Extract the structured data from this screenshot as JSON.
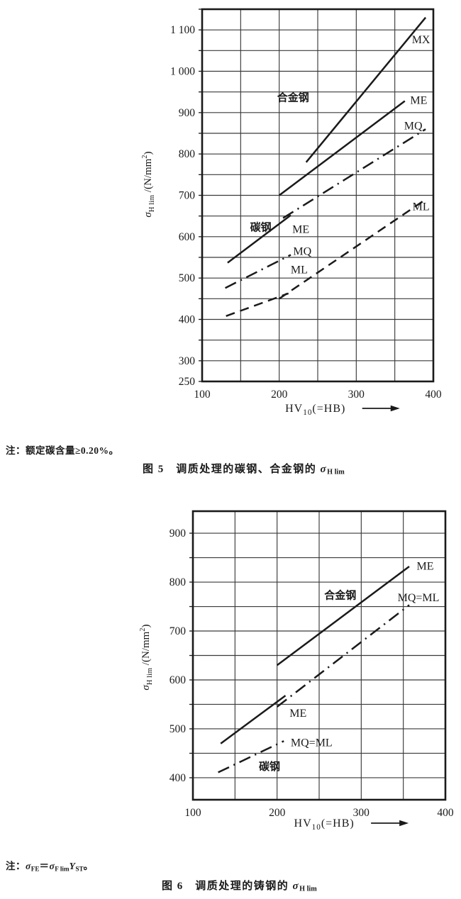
{
  "page": {
    "background": "#ffffff",
    "ink": "#1a1a1a",
    "grid_color": "#3a3a3a"
  },
  "notes": {
    "note1": [
      {
        "v": "注：额定碳含量≥0.20%。"
      }
    ],
    "note2": [
      {
        "v": "注："
      },
      {
        "v": "σ",
        "i": true
      },
      {
        "v": "FE",
        "sub": true
      },
      {
        "v": "＝"
      },
      {
        "v": "σ",
        "i": true
      },
      {
        "v": "F lim",
        "sub": true
      },
      {
        "v": "Y",
        "i": true
      },
      {
        "v": "ST",
        "sub": true
      },
      {
        "v": "。"
      }
    ]
  },
  "captions": {
    "fig5": [
      {
        "v": "图 5　调质处理的碳钢、合金钢的 "
      },
      {
        "v": "σ",
        "i": true
      },
      {
        "v": "H lim",
        "sub": true
      }
    ],
    "fig6": [
      {
        "v": "图 6　调质处理的铸钢的 "
      },
      {
        "v": "σ",
        "i": true
      },
      {
        "v": "H lim",
        "sub": true
      }
    ]
  },
  "chart_data": [
    {
      "id": "fig5",
      "type": "line",
      "title": "调质处理的碳钢、合金钢的 σH lim",
      "xlabel": "HV10(=HB)",
      "ylabel": "σH lim /(N/mm2)",
      "xlabel_segments": [
        {
          "v": "HV"
        },
        {
          "v": "10",
          "sub": true
        },
        {
          "v": "(=HB)"
        }
      ],
      "ylabel_segments": [
        {
          "v": "σ",
          "i": true
        },
        {
          "v": "H lim",
          "sub": true
        },
        {
          "v": " /(N/mm"
        },
        {
          "v": "2",
          "sup": true
        },
        {
          "v": ")"
        }
      ],
      "xlim": [
        100,
        400
      ],
      "xstep": 50,
      "ylim": [
        250,
        1150
      ],
      "ystep": 50,
      "grid": true,
      "x_ticks": [
        {
          "value": 100,
          "label": "100"
        },
        {
          "value": 200,
          "label": "200"
        },
        {
          "value": 300,
          "label": "300"
        },
        {
          "value": 400,
          "label": "400"
        }
      ],
      "y_ticks": [
        {
          "value": 1100,
          "label": "1 100"
        },
        {
          "value": 1000,
          "label": "1 000"
        },
        {
          "value": 900,
          "label": "900"
        },
        {
          "value": 800,
          "label": "800"
        },
        {
          "value": 700,
          "label": "700"
        },
        {
          "value": 600,
          "label": "600"
        },
        {
          "value": 500,
          "label": "500"
        },
        {
          "value": 400,
          "label": "400"
        },
        {
          "value": 300,
          "label": "300"
        },
        {
          "value": 250,
          "label": "250"
        }
      ],
      "series": [
        {
          "group": "合金钢",
          "grade": "MX",
          "style": "solid",
          "points": [
            [
              235,
              780
            ],
            [
              390,
              1130
            ]
          ]
        },
        {
          "group": "合金钢",
          "grade": "ME",
          "style": "solid",
          "points": [
            [
              200,
              700
            ],
            [
              363,
              928
            ]
          ]
        },
        {
          "group": "合金钢",
          "grade": "MQ",
          "style": "dashdot",
          "points": [
            [
              205,
              645
            ],
            [
              390,
              860
            ]
          ]
        },
        {
          "group": "合金钢",
          "grade": "ML",
          "style": "dashed",
          "points": [
            [
              200,
              450
            ],
            [
              390,
              690
            ]
          ]
        },
        {
          "group": "碳钢",
          "grade": "ME",
          "style": "solid",
          "points": [
            [
              133,
              537
            ],
            [
              215,
              652
            ]
          ]
        },
        {
          "group": "碳钢",
          "grade": "MQ",
          "style": "dashdot",
          "points": [
            [
              130,
              476
            ],
            [
              215,
              556
            ]
          ]
        },
        {
          "group": "碳钢",
          "grade": "ML",
          "style": "dashed",
          "points": [
            [
              131,
              408
            ],
            [
              212,
              463
            ]
          ]
        }
      ],
      "annotations": [
        {
          "text": "合金钢",
          "x": 218,
          "y": 937,
          "bold": true
        },
        {
          "text": "MX",
          "x": 384,
          "y": 1076
        },
        {
          "text": "ME",
          "x": 381,
          "y": 930
        },
        {
          "text": "MQ",
          "x": 374,
          "y": 868
        },
        {
          "text": "ML",
          "x": 384,
          "y": 673
        },
        {
          "text": "碳钢",
          "x": 176,
          "y": 623,
          "bold": true
        },
        {
          "text": "ME",
          "x": 228,
          "y": 618
        },
        {
          "text": "MQ",
          "x": 230,
          "y": 565
        },
        {
          "text": "ML",
          "x": 226,
          "y": 520
        }
      ]
    },
    {
      "id": "fig6",
      "type": "line",
      "title": "调质处理的铸钢的 σH lim",
      "xlabel": "HV10(=HB)",
      "ylabel": "σH lim /(N/mm2)",
      "xlabel_segments": [
        {
          "v": "HV"
        },
        {
          "v": "10",
          "sub": true
        },
        {
          "v": "(=HB)"
        }
      ],
      "ylabel_segments": [
        {
          "v": "σ",
          "i": true
        },
        {
          "v": "H lim",
          "sub": true
        },
        {
          "v": " /(N/mm"
        },
        {
          "v": "2",
          "sup": true
        },
        {
          "v": ")"
        }
      ],
      "xlim": [
        100,
        400
      ],
      "xstep": 50,
      "ylim": [
        355,
        945
      ],
      "ystep": 50,
      "grid": true,
      "x_ticks": [
        {
          "value": 100,
          "label": "100"
        },
        {
          "value": 200,
          "label": "200"
        },
        {
          "value": 300,
          "label": "300"
        },
        {
          "value": 400,
          "label": "400"
        }
      ],
      "y_ticks": [
        {
          "value": 900,
          "label": "900"
        },
        {
          "value": 800,
          "label": "800"
        },
        {
          "value": 700,
          "label": "700"
        },
        {
          "value": 600,
          "label": "600"
        },
        {
          "value": 500,
          "label": "500"
        },
        {
          "value": 400,
          "label": "400"
        }
      ],
      "series": [
        {
          "group": "合金钢",
          "grade": "ME",
          "style": "solid",
          "points": [
            [
              200,
              630
            ],
            [
              357,
              832
            ]
          ]
        },
        {
          "group": "合金钢",
          "grade": "MQ=ML",
          "style": "dashdot",
          "points": [
            [
              200,
              545
            ],
            [
              357,
              753
            ]
          ]
        },
        {
          "group": "碳钢",
          "grade": "ME",
          "style": "solid",
          "points": [
            [
              133,
              470
            ],
            [
              210,
              568
            ]
          ]
        },
        {
          "group": "碳钢",
          "grade": "MQ=ML",
          "style": "dashdot",
          "points": [
            [
              130,
              411
            ],
            [
              208,
              475
            ]
          ]
        }
      ],
      "annotations": [
        {
          "text": "合金钢",
          "x": 275,
          "y": 773,
          "bold": true
        },
        {
          "text": "ME",
          "x": 376,
          "y": 833
        },
        {
          "text": "MQ=ML",
          "x": 368,
          "y": 768
        },
        {
          "text": "ME",
          "x": 225,
          "y": 532
        },
        {
          "text": "MQ=ML",
          "x": 241,
          "y": 472
        },
        {
          "text": "碳钢",
          "x": 191,
          "y": 423,
          "bold": true
        }
      ]
    }
  ]
}
